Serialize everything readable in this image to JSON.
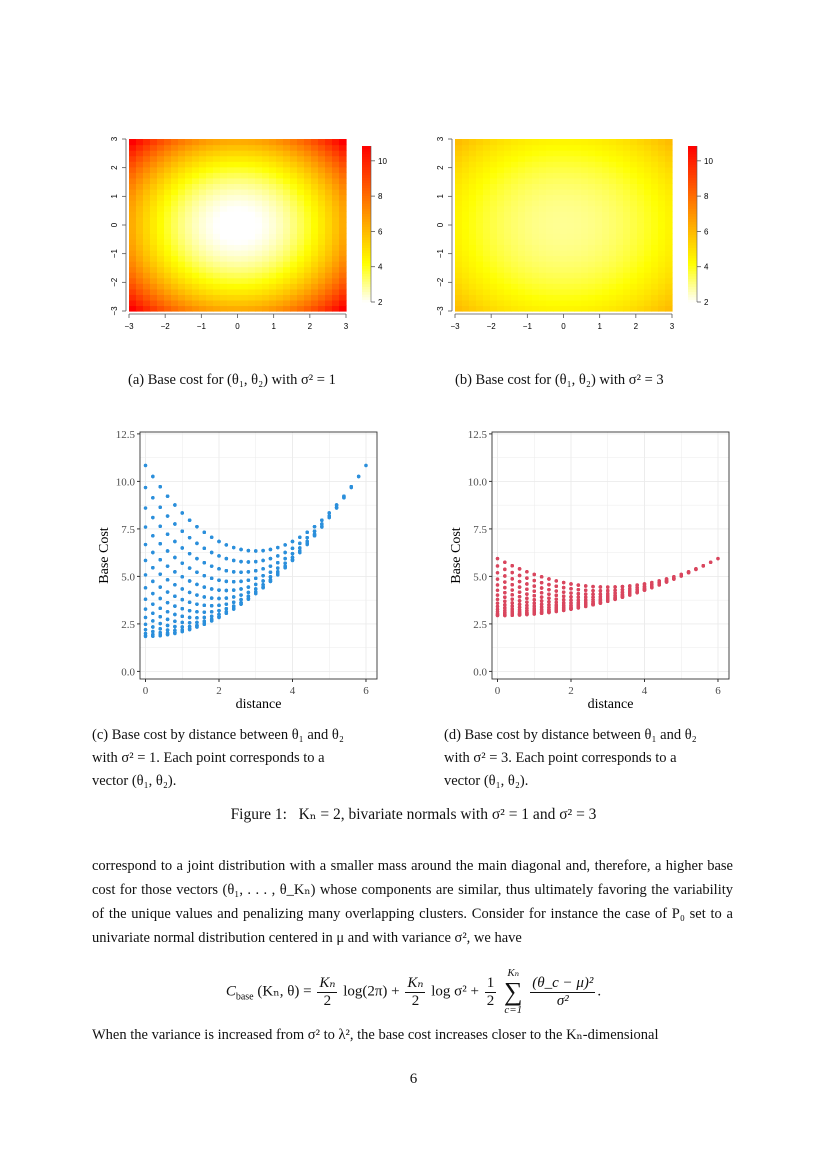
{
  "figure": {
    "caption": "Figure 1:   Kₙ = 2, bivariate normals with σ² = 1 and σ² = 3",
    "panels": [
      {
        "caption": "(a) Base cost for (θ₁, θ₂) with σ² = 1"
      },
      {
        "caption": "(b) Base cost for (θ₁, θ₂) with σ² = 3"
      },
      {
        "caption_lines": [
          "(c) Base cost by distance between θ₁ and θ₂",
          "with σ² = 1.  Each point corresponds to a",
          "vector (θ₁, θ₂)."
        ]
      },
      {
        "caption_lines": [
          "(d) Base cost by distance between θ₁ and θ₂",
          "with σ² = 3.  Each point corresponds to a",
          "vector (θ₁, θ₂)."
        ]
      }
    ]
  },
  "chart_data": [
    {
      "type": "heatmap",
      "title": "",
      "sigma2": 1,
      "formula": "log(2π)+log σ²+(θ₁²+θ₂²)/(2σ²)",
      "x_range": [
        -3,
        3
      ],
      "y_range": [
        -3,
        3
      ],
      "grid_step": 0.2,
      "x_ticks": [
        "-3",
        "-2",
        "-1",
        "0",
        "1",
        "2",
        "3"
      ],
      "y_ticks": [
        "-3",
        "-2",
        "-1",
        "0",
        "1",
        "2",
        "3"
      ],
      "colorbar": {
        "range": [
          2,
          10.84
        ],
        "ticks": [
          "2",
          "4",
          "6",
          "8",
          "10"
        ],
        "palette": "heat (white→yellow→red)"
      }
    },
    {
      "type": "heatmap",
      "title": "",
      "sigma2": 3,
      "formula": "log(2π)+log σ²+(θ₁²+θ₂²)/(2σ²)",
      "x_range": [
        -3,
        3
      ],
      "y_range": [
        -3,
        3
      ],
      "grid_step": 0.2,
      "x_ticks": [
        "-3",
        "-2",
        "-1",
        "0",
        "1",
        "2",
        "3"
      ],
      "y_ticks": [
        "-3",
        "-2",
        "-1",
        "0",
        "1",
        "2",
        "3"
      ],
      "colorbar": {
        "range": [
          2,
          10.84
        ],
        "ticks": [
          "2",
          "4",
          "6",
          "8",
          "10"
        ],
        "palette": "heat (white→yellow→red)"
      }
    },
    {
      "type": "scatter",
      "sigma2": 1,
      "xlabel": "distance",
      "ylabel": "Base Cost",
      "xlim": [
        -0.15,
        6.3
      ],
      "ylim": [
        -0.4,
        12.6
      ],
      "x_ticks": [
        "0",
        "2",
        "4",
        "6"
      ],
      "y_ticks": [
        "0.0",
        "2.5",
        "5.0",
        "7.5",
        "10.0",
        "12.5"
      ],
      "color": "#2b8fdb",
      "points_from": "grid θ₁,θ₂ ∈ [-3,3], x=|θ₁−θ₂|, y=base cost",
      "grid_step": 0.2
    },
    {
      "type": "scatter",
      "sigma2": 3,
      "xlabel": "distance",
      "ylabel": "Base Cost",
      "xlim": [
        -0.15,
        6.3
      ],
      "ylim": [
        -0.4,
        12.6
      ],
      "x_ticks": [
        "0",
        "2",
        "4",
        "6"
      ],
      "y_ticks": [
        "0.0",
        "2.5",
        "5.0",
        "7.5",
        "10.0",
        "12.5"
      ],
      "color": "#d9465e",
      "points_from": "grid θ₁,θ₂ ∈ [-3,3], x=|θ₁−θ₂|, y=base cost",
      "grid_step": 0.2
    }
  ],
  "body": {
    "para1": "correspond to a joint distribution with a smaller mass around the main diagonal and, therefore, a higher base cost for those vectors (θ₁, . . . , θ_Kₙ) whose components are similar, thus ultimately favoring the variability of the unique values and penalizing many overlapping clusters. Consider for instance the case of P₀ set to a univariate normal distribution centered in μ and with variance σ², we have",
    "equation": {
      "lhs": "C",
      "lhs_sub": "base",
      "lhs_args": "(Kₙ, θ) =",
      "f1_num": "Kₙ",
      "f1_den": "2",
      "t1": "log(2π) +",
      "f2_num": "Kₙ",
      "f2_den": "2",
      "t2": "log σ² +",
      "f3_num": "1",
      "f3_den": "2",
      "sum_top": "Kₙ",
      "sum_sym": "∑",
      "sum_bot": "c=1",
      "f4_num": "(θ_c − μ)²",
      "f4_den": "σ²",
      "end": "."
    },
    "para2": "When the variance is increased from σ² to λ², the base cost increases closer to the Kₙ-dimensional"
  },
  "page_number": "6"
}
